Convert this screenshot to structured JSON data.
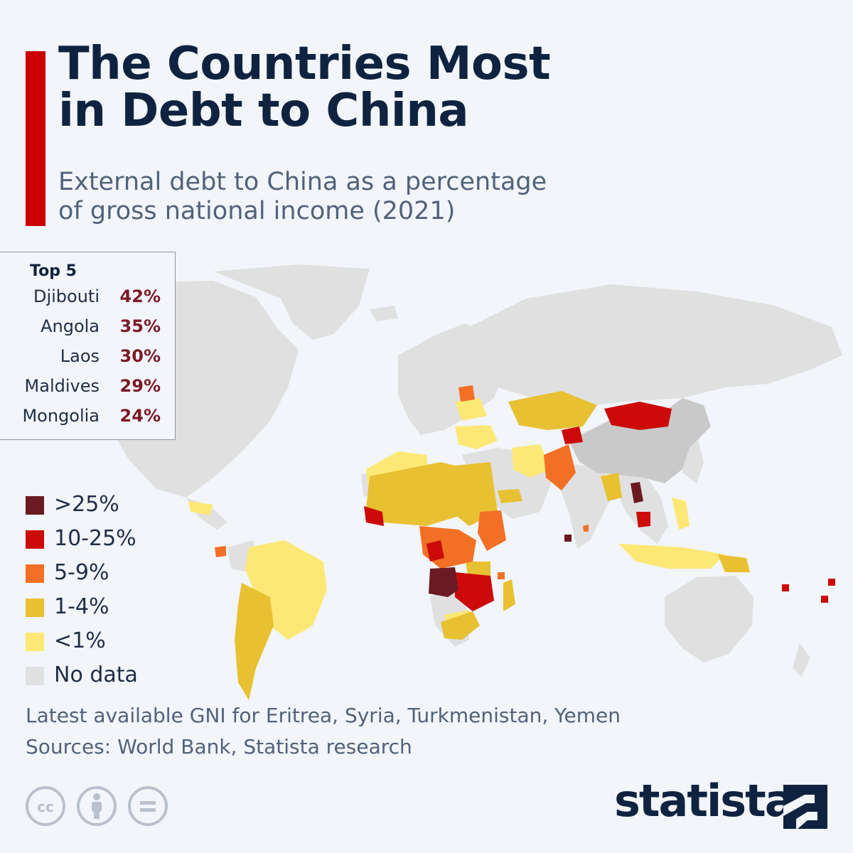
{
  "title": {
    "line1": "The Countries Most",
    "line2": "in Debt to China"
  },
  "subtitle": {
    "line1": "External debt to China as a percentage",
    "line2": "of gross national income (2021)"
  },
  "top5": {
    "heading": "Top 5",
    "items": [
      {
        "country": "Djibouti",
        "value": "42%"
      },
      {
        "country": "Angola",
        "value": "35%"
      },
      {
        "country": "Laos",
        "value": "30%"
      },
      {
        "country": "Maldives",
        "value": "29%"
      },
      {
        "country": "Mongolia",
        "value": "24%"
      }
    ]
  },
  "legend": [
    {
      "label": ">25%",
      "color": "#6b1a23"
    },
    {
      "label": "10-25%",
      "color": "#cc0a0a"
    },
    {
      "label": "5-9%",
      "color": "#f27025"
    },
    {
      "label": "1-4%",
      "color": "#e8c132"
    },
    {
      "label": "<1%",
      "color": "#fde875"
    },
    {
      "label": "No data",
      "color": "#e0e0e0"
    }
  ],
  "footnote": "Latest available GNI for Eritrea, Syria, Turkmenistan, Yemen",
  "sources": "Sources: World Bank, Statista research",
  "brand": "statista",
  "colors": {
    "accent": "#cc0000",
    "title": "#0f2340",
    "top5_value": "#7a1a28",
    "land_nodata": "#e0e0e0",
    "china": "#c9c9c9"
  },
  "icons": [
    "creative-commons-icon",
    "attribution-icon",
    "no-derivatives-icon",
    "statista-logo-icon"
  ]
}
